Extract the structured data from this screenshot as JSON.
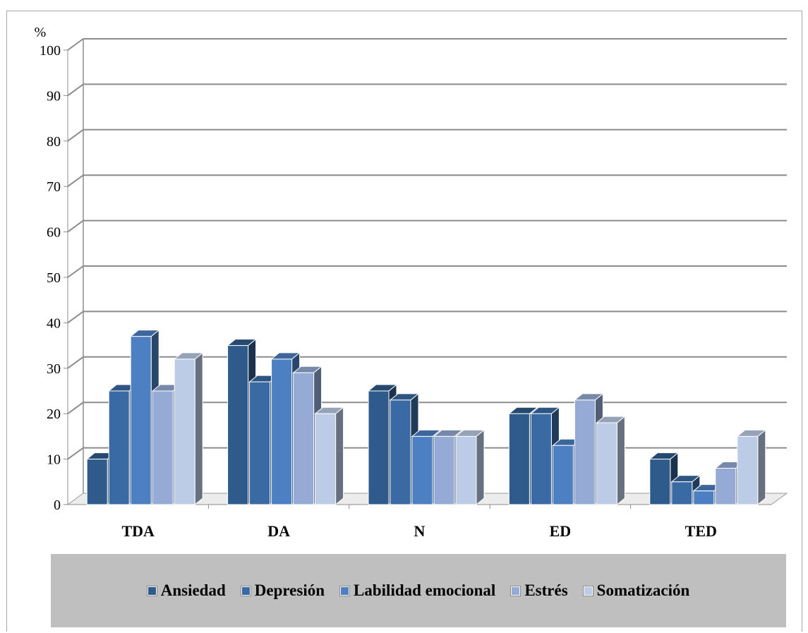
{
  "chart_data": {
    "type": "bar",
    "ylabel": "%",
    "ylim": [
      0,
      100
    ],
    "yticks": [
      0,
      10,
      20,
      30,
      40,
      50,
      60,
      70,
      80,
      90,
      100
    ],
    "categories": [
      "TDA",
      "DA",
      "N",
      "ED",
      "TED"
    ],
    "series": [
      {
        "name": "Ansiedad",
        "color": "#2f5b8c",
        "values": [
          10,
          35,
          25,
          20,
          10
        ]
      },
      {
        "name": "Depresión",
        "color": "#3a6aa3",
        "values": [
          25,
          27,
          23,
          20,
          5
        ]
      },
      {
        "name": "Labilidad emocional",
        "color": "#4c80c2",
        "values": [
          37,
          32,
          15,
          13,
          3
        ]
      },
      {
        "name": "Estrés",
        "color": "#95abd5",
        "values": [
          25,
          29,
          15,
          23,
          8
        ]
      },
      {
        "name": "Somatización",
        "color": "#bccbe6",
        "values": [
          32,
          20,
          15,
          18,
          15
        ]
      }
    ],
    "legend_position": "bottom",
    "grid": true
  }
}
